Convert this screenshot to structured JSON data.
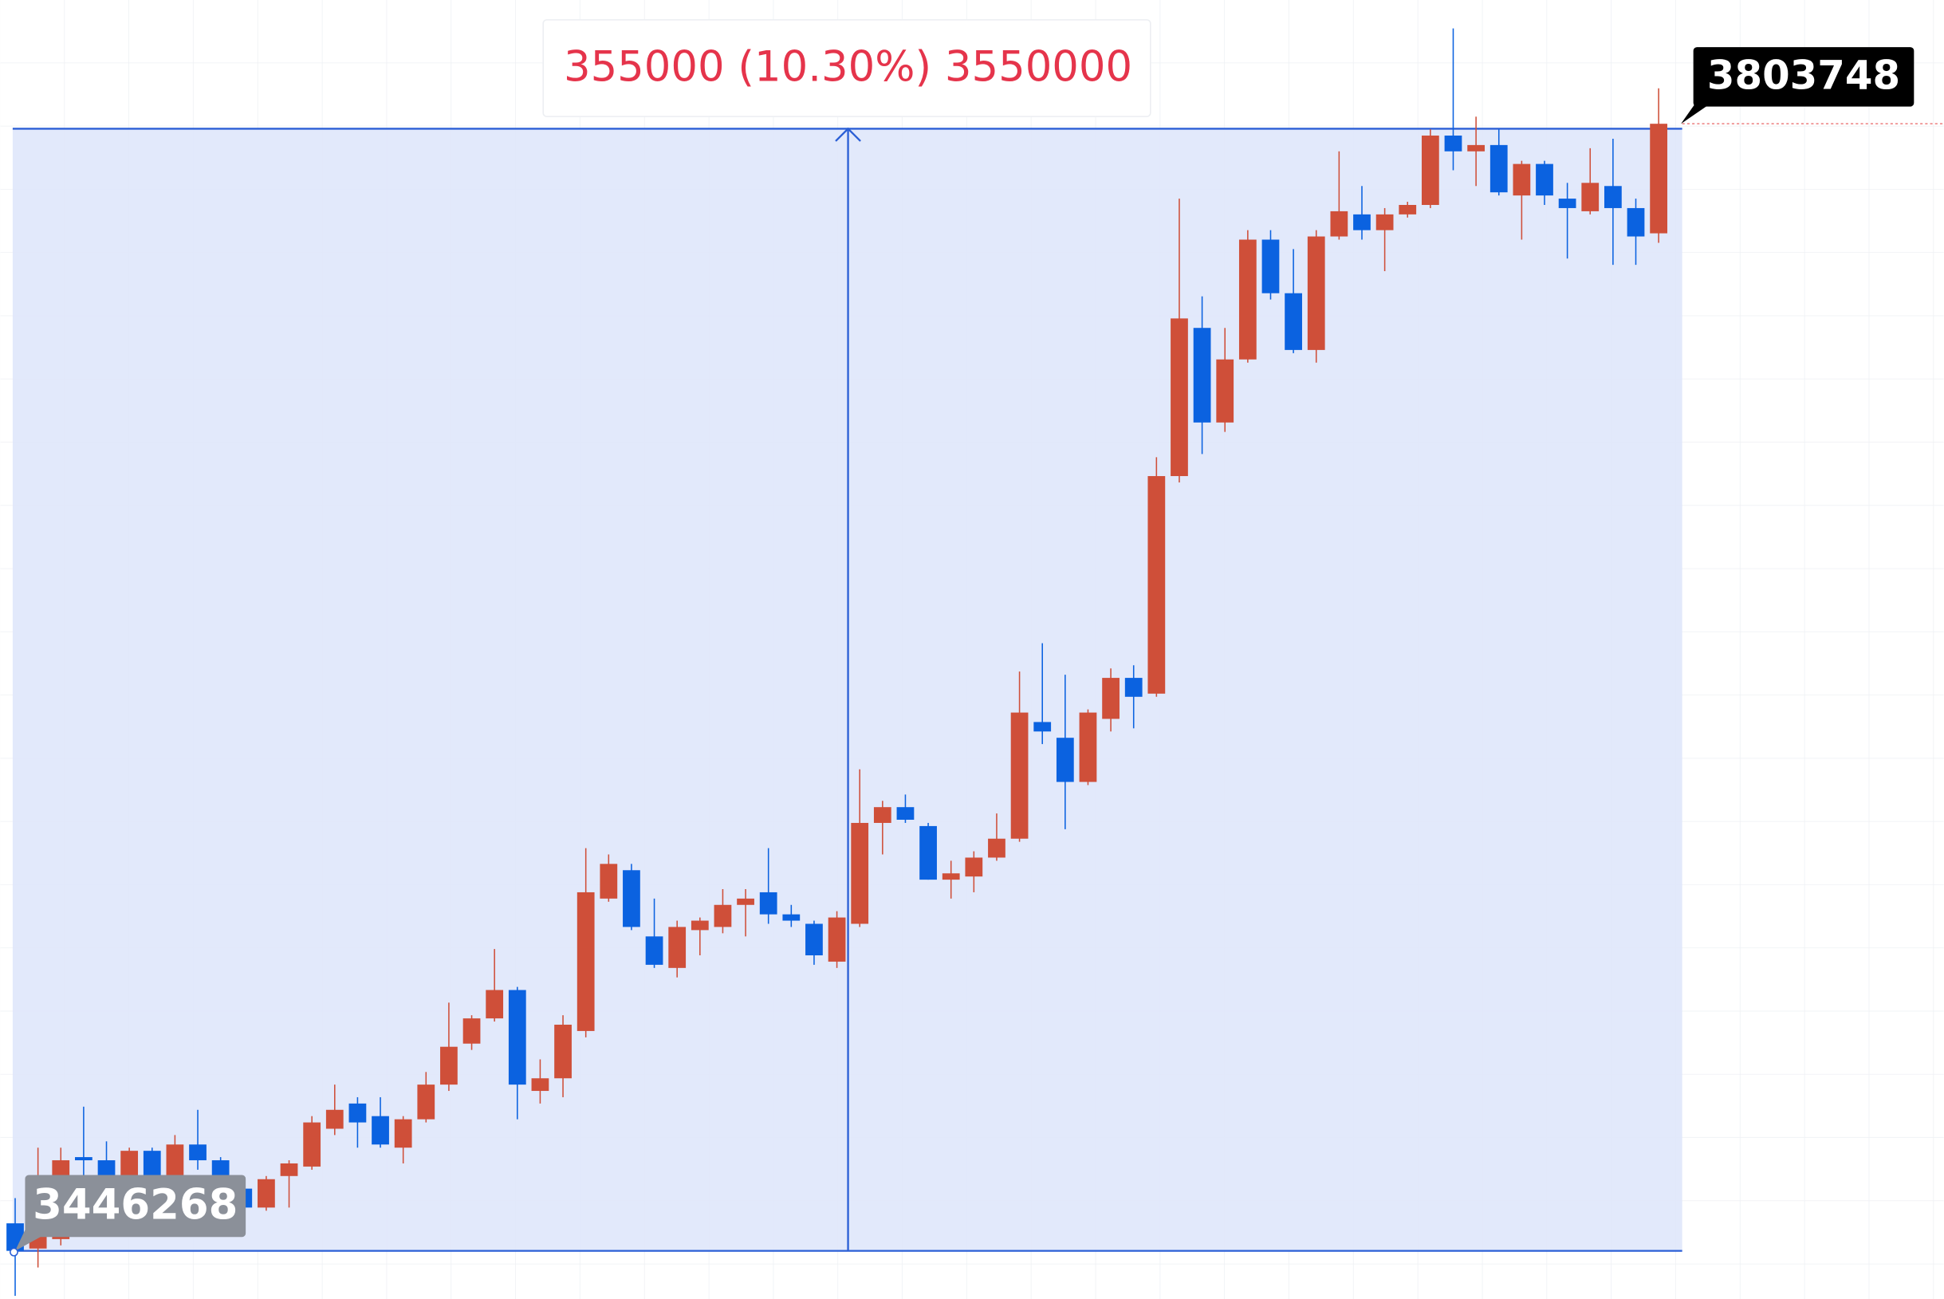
{
  "chart_data": {
    "type": "candlestick",
    "open": [
      3455000,
      3447000,
      3450000,
      3476000,
      3475000,
      3466000,
      3478000,
      3466000,
      3480000,
      3475000,
      3466000,
      3460000,
      3470000,
      3473000,
      3485000,
      3493000,
      3489000,
      3479000,
      3488000,
      3499000,
      3512000,
      3520000,
      3529000,
      3497000,
      3501000,
      3516000,
      3558000,
      3567000,
      3546000,
      3536000,
      3548000,
      3549000,
      3556000,
      3560000,
      3553000,
      3550000,
      3538000,
      3550000,
      3582000,
      3587000,
      3581000,
      3564000,
      3565000,
      3571000,
      3577000,
      3614000,
      3609000,
      3595000,
      3615000,
      3628000,
      3623000,
      3692000,
      3739000,
      3709000,
      3729000,
      3767000,
      3750000,
      3732000,
      3768000,
      3775000,
      3770000,
      3775000,
      3778000,
      3800000,
      3795000,
      3797000,
      3781000,
      3791000,
      3780000,
      3776000,
      3784000,
      3777000,
      3769000
    ],
    "high": [
      3463000,
      3479000,
      3479000,
      3492000,
      3481000,
      3479000,
      3479000,
      3483000,
      3491000,
      3476000,
      3467000,
      3470000,
      3475000,
      3489000,
      3499000,
      3495000,
      3495000,
      3489000,
      3503000,
      3525000,
      3521000,
      3542000,
      3530000,
      3507000,
      3521000,
      3574000,
      3572000,
      3569000,
      3558000,
      3551000,
      3552000,
      3561000,
      3561000,
      3574000,
      3556000,
      3551000,
      3554000,
      3599000,
      3589000,
      3591000,
      3582000,
      3570000,
      3573000,
      3585000,
      3630000,
      3639000,
      3629000,
      3618000,
      3631000,
      3632000,
      3698000,
      3780000,
      3749000,
      3739000,
      3770000,
      3770000,
      3764000,
      3770000,
      3795000,
      3784000,
      3777000,
      3779000,
      3802000,
      3834000,
      3806000,
      3802000,
      3792000,
      3792000,
      3785000,
      3796000,
      3799000,
      3780000,
      3815000
    ],
    "low": [
      3432000,
      3441000,
      3448000,
      3470000,
      3462000,
      3464000,
      3464000,
      3464000,
      3472000,
      3462000,
      3458000,
      3459000,
      3460000,
      3472000,
      3483000,
      3479000,
      3479000,
      3474000,
      3487000,
      3497000,
      3510000,
      3519000,
      3488000,
      3493000,
      3495000,
      3514000,
      3557000,
      3548000,
      3536000,
      3533000,
      3540000,
      3547000,
      3546000,
      3550000,
      3549000,
      3537000,
      3536000,
      3549000,
      3572000,
      3582000,
      3564000,
      3558000,
      3560000,
      3570000,
      3576000,
      3607000,
      3580000,
      3594000,
      3611000,
      3612000,
      3622000,
      3690000,
      3699000,
      3706000,
      3728000,
      3748000,
      3731000,
      3728000,
      3767000,
      3767000,
      3757000,
      3774000,
      3777000,
      3789000,
      3784000,
      3781000,
      3767000,
      3778000,
      3761000,
      3775000,
      3759000,
      3759000,
      3766000
    ],
    "close": [
      3446268,
      3454000,
      3475000,
      3475000,
      3466000,
      3478000,
      3466000,
      3480000,
      3475000,
      3466000,
      3460000,
      3469000,
      3474000,
      3487000,
      3491000,
      3487000,
      3480000,
      3488000,
      3499000,
      3511000,
      3520000,
      3529000,
      3499000,
      3501000,
      3518000,
      3560000,
      3569000,
      3549000,
      3537000,
      3549000,
      3551000,
      3556000,
      3558000,
      3553000,
      3551000,
      3540000,
      3552000,
      3582000,
      3587000,
      3583000,
      3564000,
      3566000,
      3571000,
      3577000,
      3617000,
      3611000,
      3595000,
      3617000,
      3628000,
      3622000,
      3692000,
      3742000,
      3709000,
      3729000,
      3767000,
      3750000,
      3732000,
      3768000,
      3776000,
      3770000,
      3775000,
      3778000,
      3800000,
      3795000,
      3797000,
      3782000,
      3791000,
      3781000,
      3777000,
      3785000,
      3777000,
      3768000,
      3803748
    ],
    "up_color": "#cf4f39",
    "down_color": "#0b62e0",
    "ylim": [
      3431000,
      3843000
    ],
    "measure_label": "355000 (10.30%) 3550000",
    "price_labels": [
      3446268,
      3803748
    ]
  }
}
